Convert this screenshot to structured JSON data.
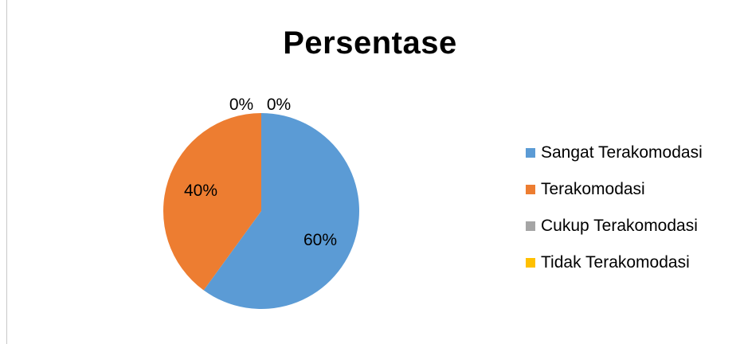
{
  "chart_data": {
    "type": "pie",
    "title": "Persentase",
    "categories": [
      "Sangat Terakomodasi",
      "Terakomodasi",
      "Cukup Terakomodasi",
      "Tidak Terakomodasi"
    ],
    "values": [
      60,
      40,
      0,
      0
    ],
    "data_labels": [
      "60%",
      "40%",
      "0%",
      "0%"
    ],
    "colors": [
      "#5B9BD5",
      "#ED7D31",
      "#A5A5A5",
      "#FFC000"
    ],
    "legend_position": "right"
  }
}
